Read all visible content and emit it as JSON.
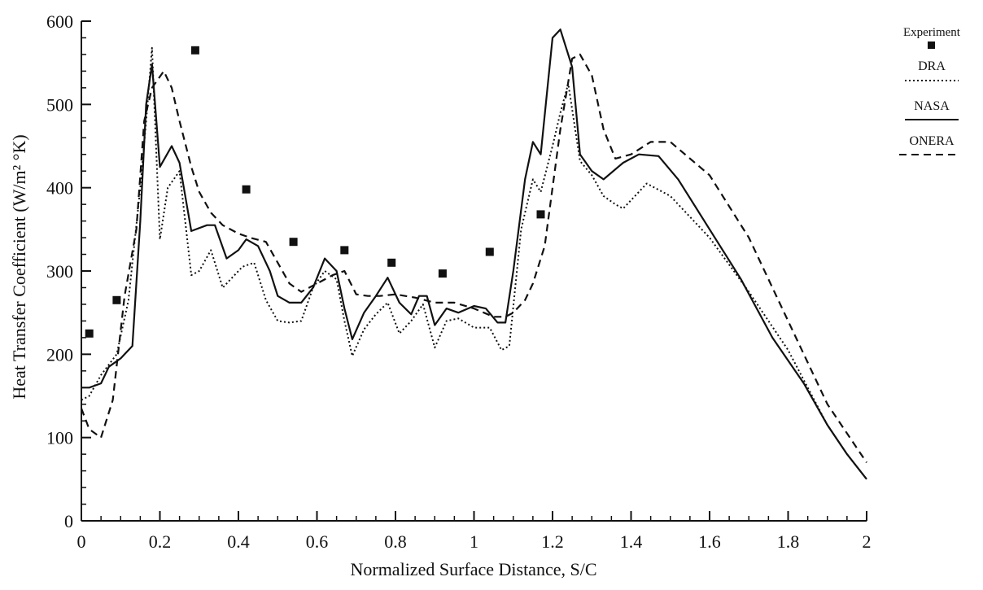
{
  "chart_data": {
    "type": "line",
    "title": "",
    "xlabel": "Normalized Surface Distance, S/C",
    "ylabel": "Heat Transfer Coefficient (W/m² °K)",
    "xlim": [
      0,
      2
    ],
    "ylim": [
      0,
      600
    ],
    "x_ticks": [
      "0",
      "0.2",
      "0.4",
      "0.6",
      "0.8",
      "1",
      "1.2",
      "1.4",
      "1.6",
      "1.8",
      "2"
    ],
    "y_ticks": [
      "0",
      "100",
      "200",
      "300",
      "400",
      "500",
      "600"
    ],
    "grid": false,
    "legend": {
      "placement": "top-right",
      "title": "Experiment",
      "entries": [
        "DRA",
        "NASA",
        "ONERA"
      ]
    },
    "experiment": {
      "name": "Experiment",
      "points": [
        [
          0.02,
          225
        ],
        [
          0.09,
          265
        ],
        [
          0.29,
          565
        ],
        [
          0.42,
          398
        ],
        [
          0.54,
          335
        ],
        [
          0.67,
          325
        ],
        [
          0.79,
          310
        ],
        [
          0.92,
          297
        ],
        [
          1.04,
          323
        ],
        [
          1.17,
          368
        ]
      ]
    },
    "series": [
      {
        "name": "DRA",
        "style": "dotted",
        "x": [
          0.0,
          0.02,
          0.05,
          0.09,
          0.12,
          0.15,
          0.165,
          0.18,
          0.2,
          0.22,
          0.25,
          0.28,
          0.3,
          0.33,
          0.36,
          0.38,
          0.41,
          0.44,
          0.47,
          0.5,
          0.53,
          0.56,
          0.59,
          0.62,
          0.65,
          0.67,
          0.69,
          0.72,
          0.75,
          0.78,
          0.81,
          0.84,
          0.87,
          0.9,
          0.93,
          0.96,
          1.0,
          1.04,
          1.07,
          1.09,
          1.12,
          1.15,
          1.17,
          1.2,
          1.22,
          1.24,
          1.27,
          1.3,
          1.33,
          1.36,
          1.38,
          1.41,
          1.44,
          1.5,
          1.6,
          1.7,
          1.8,
          1.85,
          1.9,
          1.95,
          2.0
        ],
        "values": [
          145,
          150,
          175,
          200,
          265,
          400,
          480,
          568,
          338,
          400,
          420,
          295,
          300,
          325,
          280,
          290,
          305,
          310,
          265,
          240,
          238,
          240,
          280,
          300,
          290,
          240,
          198,
          230,
          248,
          262,
          225,
          240,
          260,
          208,
          240,
          243,
          232,
          232,
          205,
          210,
          350,
          410,
          395,
          450,
          490,
          525,
          432,
          415,
          390,
          380,
          375,
          390,
          405,
          390,
          340,
          275,
          205,
          160,
          115,
          80,
          50
        ]
      },
      {
        "name": "NASA",
        "style": "solid",
        "x": [
          0.0,
          0.02,
          0.05,
          0.07,
          0.1,
          0.13,
          0.15,
          0.165,
          0.18,
          0.2,
          0.23,
          0.25,
          0.28,
          0.32,
          0.34,
          0.37,
          0.4,
          0.42,
          0.45,
          0.48,
          0.5,
          0.53,
          0.56,
          0.59,
          0.62,
          0.65,
          0.67,
          0.69,
          0.72,
          0.75,
          0.78,
          0.81,
          0.84,
          0.86,
          0.88,
          0.9,
          0.93,
          0.96,
          1.0,
          1.03,
          1.06,
          1.08,
          1.1,
          1.13,
          1.15,
          1.17,
          1.2,
          1.22,
          1.25,
          1.27,
          1.3,
          1.33,
          1.38,
          1.42,
          1.47,
          1.52,
          1.6,
          1.68,
          1.76,
          1.84,
          1.9,
          1.95,
          2.0
        ],
        "values": [
          160,
          160,
          165,
          185,
          195,
          210,
          360,
          500,
          548,
          425,
          450,
          430,
          348,
          355,
          355,
          315,
          325,
          338,
          330,
          300,
          270,
          262,
          262,
          280,
          315,
          300,
          255,
          218,
          250,
          270,
          292,
          262,
          248,
          270,
          270,
          235,
          255,
          250,
          258,
          255,
          238,
          238,
          300,
          410,
          455,
          440,
          580,
          590,
          545,
          440,
          420,
          410,
          430,
          440,
          438,
          410,
          350,
          290,
          220,
          165,
          115,
          80,
          50
        ]
      },
      {
        "name": "ONERA",
        "style": "dashed",
        "x": [
          0.0,
          0.02,
          0.05,
          0.08,
          0.11,
          0.14,
          0.16,
          0.18,
          0.21,
          0.23,
          0.25,
          0.28,
          0.3,
          0.33,
          0.36,
          0.4,
          0.43,
          0.47,
          0.5,
          0.53,
          0.56,
          0.6,
          0.64,
          0.67,
          0.7,
          0.73,
          0.76,
          0.8,
          0.85,
          0.9,
          0.95,
          1.0,
          1.05,
          1.08,
          1.1,
          1.13,
          1.15,
          1.18,
          1.2,
          1.22,
          1.25,
          1.27,
          1.3,
          1.33,
          1.36,
          1.4,
          1.45,
          1.5,
          1.6,
          1.7,
          1.8,
          1.9,
          2.0
        ],
        "values": [
          135,
          110,
          100,
          145,
          270,
          350,
          480,
          520,
          540,
          520,
          480,
          425,
          395,
          370,
          355,
          345,
          340,
          335,
          310,
          285,
          275,
          285,
          295,
          300,
          272,
          270,
          270,
          272,
          268,
          262,
          262,
          255,
          245,
          245,
          250,
          265,
          285,
          330,
          400,
          470,
          555,
          560,
          535,
          470,
          435,
          440,
          455,
          455,
          415,
          340,
          240,
          140,
          70
        ]
      }
    ]
  }
}
